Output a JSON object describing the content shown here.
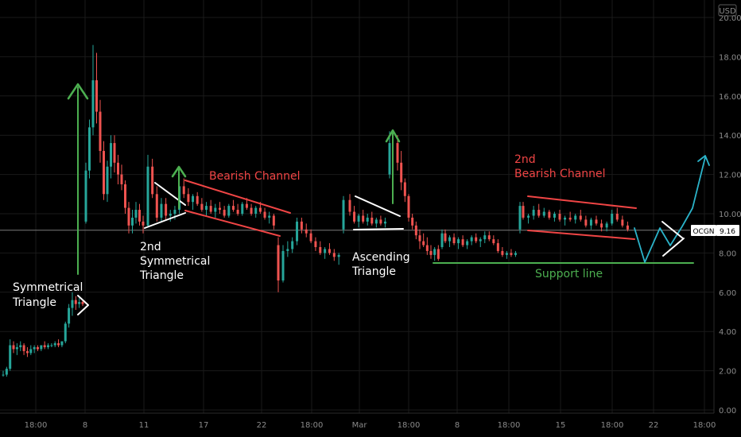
{
  "chart_data": {
    "type": "candlestick",
    "currency": "USD",
    "symbol": "OCGN",
    "last_price": "9.16",
    "ylim": [
      0,
      20
    ],
    "y_ticks": [
      "0.00",
      "2.00",
      "4.00",
      "6.00",
      "8.00",
      "10.00",
      "12.00",
      "14.00",
      "16.00",
      "18.00",
      "20.00"
    ],
    "x_ticks": [
      "18:00",
      "8",
      "11",
      "17",
      "22",
      "18:00",
      "Mar",
      "18:00",
      "8",
      "18:00",
      "15",
      "18:00",
      "22",
      "18:00"
    ],
    "candles": [
      [
        1.8,
        2.0,
        1.7,
        1.8
      ],
      [
        1.8,
        2.2,
        1.7,
        2.1
      ],
      [
        2.1,
        3.6,
        2.0,
        3.3
      ],
      [
        3.3,
        3.5,
        2.9,
        3.1
      ],
      [
        3.1,
        3.4,
        2.8,
        3.2
      ],
      [
        3.2,
        3.5,
        3.0,
        3.3
      ],
      [
        3.3,
        3.4,
        2.8,
        3.0
      ],
      [
        3.0,
        3.2,
        2.7,
        2.9
      ],
      [
        2.9,
        3.3,
        2.8,
        3.1
      ],
      [
        3.1,
        3.3,
        2.9,
        3.2
      ],
      [
        3.2,
        3.3,
        3.0,
        3.1
      ],
      [
        3.1,
        3.3,
        3.0,
        3.3
      ],
      [
        3.3,
        3.5,
        3.1,
        3.2
      ],
      [
        3.2,
        3.4,
        3.1,
        3.3
      ],
      [
        3.3,
        3.4,
        3.2,
        3.3
      ],
      [
        3.3,
        3.5,
        3.2,
        3.4
      ],
      [
        3.4,
        3.6,
        3.2,
        3.3
      ],
      [
        3.3,
        3.5,
        3.2,
        3.5
      ],
      [
        3.5,
        4.5,
        3.4,
        4.4
      ],
      [
        4.4,
        5.4,
        4.2,
        5.2
      ],
      [
        5.2,
        6.0,
        4.8,
        5.6
      ],
      [
        5.6,
        5.8,
        5.1,
        5.4
      ],
      [
        5.4,
        5.7,
        5.2,
        5.5
      ],
      [
        5.5,
        5.6,
        5.3,
        5.4
      ],
      [
        9.6,
        12.6,
        9.5,
        12.2
      ],
      [
        12.2,
        14.8,
        11.8,
        14.4
      ],
      [
        14.4,
        18.6,
        14.0,
        16.8
      ],
      [
        16.8,
        18.2,
        14.6,
        15.2
      ],
      [
        15.2,
        15.8,
        12.6,
        13.2
      ],
      [
        13.2,
        13.7,
        10.7,
        11.0
      ],
      [
        11.0,
        12.7,
        10.6,
        12.4
      ],
      [
        12.4,
        14.0,
        11.8,
        13.6
      ],
      [
        13.6,
        14.0,
        12.1,
        12.6
      ],
      [
        12.6,
        13.0,
        11.5,
        12.0
      ],
      [
        12.0,
        12.5,
        11.2,
        11.5
      ],
      [
        11.5,
        11.7,
        10.0,
        10.3
      ],
      [
        10.3,
        10.6,
        9.0,
        9.4
      ],
      [
        9.4,
        10.2,
        9.0,
        9.8
      ],
      [
        9.8,
        10.6,
        9.5,
        10.2
      ],
      [
        10.2,
        10.5,
        9.4,
        9.6
      ],
      [
        9.6,
        9.9,
        9.0,
        9.4
      ],
      [
        9.4,
        13.0,
        9.3,
        12.4
      ],
      [
        12.4,
        12.8,
        10.8,
        11.0
      ],
      [
        11.0,
        11.4,
        9.6,
        9.8
      ],
      [
        9.8,
        10.8,
        9.6,
        10.5
      ],
      [
        10.5,
        10.8,
        9.7,
        9.9
      ],
      [
        9.9,
        10.2,
        9.6,
        10.0
      ],
      [
        10.0,
        10.4,
        9.7,
        10.2
      ],
      [
        10.2,
        12.0,
        10.0,
        11.4
      ],
      [
        11.4,
        11.8,
        10.8,
        11.0
      ],
      [
        11.0,
        11.3,
        10.4,
        10.6
      ],
      [
        10.6,
        11.0,
        10.2,
        10.9
      ],
      [
        10.9,
        11.1,
        10.4,
        10.5
      ],
      [
        10.5,
        10.8,
        10.1,
        10.2
      ],
      [
        10.2,
        10.6,
        9.9,
        10.4
      ],
      [
        10.4,
        10.7,
        10.0,
        10.1
      ],
      [
        10.1,
        10.5,
        9.8,
        10.3
      ],
      [
        10.3,
        10.6,
        10.0,
        10.2
      ],
      [
        10.2,
        10.4,
        9.8,
        9.9
      ],
      [
        9.9,
        10.5,
        9.8,
        10.4
      ],
      [
        10.4,
        10.7,
        10.1,
        10.2
      ],
      [
        10.2,
        10.5,
        9.9,
        10.0
      ],
      [
        10.0,
        10.6,
        9.9,
        10.5
      ],
      [
        10.5,
        10.8,
        10.2,
        10.3
      ],
      [
        10.3,
        10.5,
        9.9,
        10.0
      ],
      [
        10.0,
        10.4,
        9.8,
        10.3
      ],
      [
        10.3,
        10.6,
        10.0,
        10.1
      ],
      [
        10.1,
        10.3,
        9.7,
        9.8
      ],
      [
        9.8,
        10.1,
        9.5,
        9.9
      ],
      [
        9.9,
        10.0,
        9.2,
        9.4
      ],
      [
        8.4,
        8.8,
        6.0,
        6.6
      ],
      [
        6.6,
        8.4,
        6.5,
        8.1
      ],
      [
        8.1,
        8.6,
        7.8,
        8.2
      ],
      [
        8.2,
        8.8,
        8.0,
        8.6
      ],
      [
        8.6,
        9.8,
        8.4,
        9.6
      ],
      [
        9.6,
        9.8,
        9.0,
        9.2
      ],
      [
        9.2,
        9.5,
        8.8,
        9.0
      ],
      [
        9.0,
        9.2,
        8.5,
        8.6
      ],
      [
        8.6,
        8.8,
        8.1,
        8.3
      ],
      [
        8.3,
        8.6,
        7.9,
        8.0
      ],
      [
        8.0,
        8.3,
        7.7,
        8.2
      ],
      [
        8.2,
        8.5,
        7.9,
        8.0
      ],
      [
        8.0,
        8.2,
        7.6,
        7.8
      ],
      [
        7.8,
        8.0,
        7.4,
        7.9
      ],
      [
        9.2,
        10.9,
        9.0,
        10.7
      ],
      [
        10.7,
        11.0,
        9.9,
        10.1
      ],
      [
        10.1,
        10.4,
        9.5,
        9.6
      ],
      [
        9.6,
        10.0,
        9.3,
        9.9
      ],
      [
        9.9,
        10.2,
        9.5,
        9.6
      ],
      [
        9.6,
        10.0,
        9.4,
        9.8
      ],
      [
        9.8,
        10.1,
        9.4,
        9.5
      ],
      [
        9.5,
        9.8,
        9.3,
        9.7
      ],
      [
        9.7,
        9.9,
        9.4,
        9.5
      ],
      [
        9.5,
        9.8,
        9.3,
        9.6
      ],
      [
        12.0,
        14.2,
        11.8,
        13.6
      ],
      [
        13.6,
        14.0,
        12.2,
        12.6
      ],
      [
        12.6,
        13.2,
        11.2,
        11.6
      ],
      [
        11.6,
        11.8,
        10.6,
        10.9
      ],
      [
        10.9,
        11.0,
        9.6,
        9.8
      ],
      [
        9.8,
        10.0,
        9.2,
        9.4
      ],
      [
        9.4,
        9.6,
        8.7,
        8.9
      ],
      [
        8.9,
        9.2,
        8.2,
        8.6
      ],
      [
        8.6,
        9.0,
        8.3,
        8.4
      ],
      [
        8.4,
        8.8,
        7.9,
        8.1
      ],
      [
        8.1,
        8.4,
        7.7,
        7.9
      ],
      [
        7.9,
        8.3,
        7.6,
        8.2
      ],
      [
        8.2,
        8.4,
        7.6,
        7.7
      ],
      [
        8.3,
        9.2,
        8.2,
        9.0
      ],
      [
        9.0,
        9.2,
        8.5,
        8.6
      ],
      [
        8.6,
        8.9,
        8.3,
        8.8
      ],
      [
        8.8,
        9.0,
        8.4,
        8.5
      ],
      [
        8.5,
        8.8,
        8.2,
        8.7
      ],
      [
        8.7,
        8.9,
        8.3,
        8.4
      ],
      [
        8.4,
        8.7,
        8.2,
        8.6
      ],
      [
        8.6,
        8.9,
        8.4,
        8.8
      ],
      [
        8.8,
        9.0,
        8.5,
        8.6
      ],
      [
        8.6,
        8.8,
        8.3,
        8.7
      ],
      [
        8.7,
        9.1,
        8.5,
        8.9
      ],
      [
        8.9,
        9.1,
        8.6,
        8.7
      ],
      [
        8.7,
        8.9,
        8.4,
        8.5
      ],
      [
        8.5,
        8.7,
        8.0,
        8.1
      ],
      [
        8.1,
        8.3,
        7.8,
        7.9
      ],
      [
        7.9,
        8.1,
        7.7,
        8.0
      ],
      [
        8.0,
        8.2,
        7.8,
        7.9
      ],
      [
        7.9,
        8.1,
        7.8,
        8.0
      ],
      [
        9.2,
        10.6,
        9.0,
        10.4
      ],
      [
        10.4,
        10.6,
        9.7,
        9.8
      ],
      [
        9.8,
        10.0,
        9.5,
        9.9
      ],
      [
        9.9,
        10.4,
        9.7,
        10.2
      ],
      [
        10.2,
        10.5,
        9.8,
        9.9
      ],
      [
        9.9,
        10.3,
        9.8,
        10.1
      ],
      [
        10.1,
        10.2,
        9.7,
        9.8
      ],
      [
        9.8,
        10.1,
        9.6,
        10.0
      ],
      [
        10.0,
        10.2,
        9.6,
        9.7
      ],
      [
        9.7,
        9.9,
        9.4,
        9.8
      ],
      [
        9.8,
        10.1,
        9.6,
        9.7
      ],
      [
        9.7,
        10.0,
        9.5,
        9.9
      ],
      [
        9.9,
        10.2,
        9.6,
        9.7
      ],
      [
        9.7,
        9.9,
        9.3,
        9.4
      ],
      [
        9.4,
        9.8,
        9.2,
        9.7
      ],
      [
        9.7,
        9.9,
        9.4,
        9.5
      ],
      [
        9.5,
        9.7,
        9.1,
        9.3
      ],
      [
        9.3,
        9.6,
        9.1,
        9.5
      ],
      [
        9.5,
        10.2,
        9.4,
        10.0
      ],
      [
        10.0,
        10.3,
        9.6,
        9.7
      ],
      [
        9.7,
        9.9,
        9.3,
        9.4
      ],
      [
        9.4,
        9.6,
        9.1,
        9.2
      ]
    ],
    "annotations": [
      {
        "name": "symmetrical-triangle-label",
        "text": [
          "Symmetrical",
          "Triangle"
        ],
        "color": "#ffffff"
      },
      {
        "name": "second-symmetrical-triangle-label",
        "text": [
          "2nd",
          "Symmetrical",
          "Triangle"
        ],
        "color": "#ffffff"
      },
      {
        "name": "bearish-channel-label",
        "text": [
          "Bearish Channel"
        ],
        "color": "#f04545"
      },
      {
        "name": "ascending-triangle-label",
        "text": [
          "Ascending",
          "Triangle"
        ],
        "color": "#ffffff"
      },
      {
        "name": "second-bearish-channel-label",
        "text": [
          "2nd",
          "Bearish Channel"
        ],
        "color": "#f04545"
      },
      {
        "name": "support-line-label",
        "text": [
          "Support line"
        ],
        "color": "#4caf50"
      }
    ],
    "colors": {
      "up": "#26a69a",
      "down": "#ef5350",
      "grid": "#1a1a1a",
      "price_line": "#7a7a7a",
      "pattern_white": "#ffffff",
      "channel_red": "#f04545",
      "arrow_green": "#4caf50",
      "projection_cyan": "#2bb3c9"
    }
  }
}
